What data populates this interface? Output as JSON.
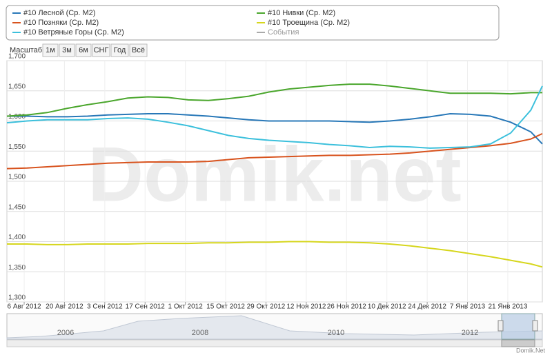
{
  "chart_data": {
    "type": "line",
    "range_selector": {
      "label": "Масштаб",
      "buttons": [
        "1м",
        "3м",
        "6м",
        "СНГ",
        "Год",
        "Всё"
      ]
    },
    "watermark": "Domik.net",
    "x": [
      "2012-07-31",
      "2012-08-07",
      "2012-08-14",
      "2012-08-21",
      "2012-08-28",
      "2012-09-04",
      "2012-09-11",
      "2012-09-18",
      "2012-09-25",
      "2012-10-02",
      "2012-10-09",
      "2012-10-16",
      "2012-10-23",
      "2012-10-30",
      "2012-11-06",
      "2012-11-13",
      "2012-11-20",
      "2012-11-27",
      "2012-12-04",
      "2012-12-11",
      "2012-12-18",
      "2012-12-25",
      "2013-01-01",
      "2013-01-08",
      "2013-01-15",
      "2013-01-22",
      "2013-01-29",
      "2013-02-02"
    ],
    "xlim": [
      "2012-07-31",
      "2013-02-02"
    ],
    "xticks": [
      {
        "value": "2012-08-06",
        "label": "6 Авг 2012"
      },
      {
        "value": "2012-08-20",
        "label": "20 Авг 2012"
      },
      {
        "value": "2012-09-03",
        "label": "3 Сен 2012"
      },
      {
        "value": "2012-09-17",
        "label": "17 Сен 2012"
      },
      {
        "value": "2012-10-01",
        "label": "1 Окт 2012"
      },
      {
        "value": "2012-10-15",
        "label": "15 Окт 2012"
      },
      {
        "value": "2012-10-29",
        "label": "29 Окт 2012"
      },
      {
        "value": "2012-11-12",
        "label": "12 Ноя 2012"
      },
      {
        "value": "2012-11-26",
        "label": "26 Ноя 2012"
      },
      {
        "value": "2012-12-10",
        "label": "10 Дек 2012"
      },
      {
        "value": "2012-12-24",
        "label": "24 Дек 2012"
      },
      {
        "value": "2013-01-07",
        "label": "7 Янв 2013"
      },
      {
        "value": "2013-01-21",
        "label": "21 Янв 2013"
      }
    ],
    "ylim": [
      1300,
      1700
    ],
    "yticks": [
      {
        "value": 1300,
        "label": "1,300"
      },
      {
        "value": 1350,
        "label": "1,350"
      },
      {
        "value": 1400,
        "label": "1,400"
      },
      {
        "value": 1450,
        "label": "1,450"
      },
      {
        "value": 1500,
        "label": "1,500"
      },
      {
        "value": 1550,
        "label": "1,550"
      },
      {
        "value": 1600,
        "label": "1,600"
      },
      {
        "value": 1650,
        "label": "1,650"
      },
      {
        "value": 1700,
        "label": "1,700"
      }
    ],
    "grid": true,
    "series": [
      {
        "name": "#10 Лесной (Ср. М2)",
        "color": "#2878b8",
        "values": [
          1608,
          1608,
          1607,
          1607,
          1608,
          1610,
          1611,
          1612,
          1612,
          1610,
          1608,
          1605,
          1602,
          1600,
          1600,
          1600,
          1600,
          1599,
          1598,
          1600,
          1603,
          1607,
          1612,
          1611,
          1608,
          1598,
          1582,
          1562
        ]
      },
      {
        "name": "#10 Нивки (Ср. М2)",
        "color": "#4aa62c",
        "values": [
          1608,
          1610,
          1614,
          1621,
          1627,
          1632,
          1638,
          1640,
          1639,
          1635,
          1634,
          1637,
          1641,
          1648,
          1653,
          1656,
          1659,
          1661,
          1661,
          1658,
          1654,
          1650,
          1646,
          1646,
          1646,
          1645,
          1647,
          1647
        ]
      },
      {
        "name": "#10 Позняки (Ср. М2)",
        "color": "#d8531e",
        "values": [
          1521,
          1522,
          1524,
          1526,
          1528,
          1530,
          1531,
          1532,
          1532,
          1532,
          1533,
          1536,
          1539,
          1540,
          1541,
          1542,
          1543,
          1543,
          1544,
          1545,
          1547,
          1550,
          1553,
          1556,
          1559,
          1563,
          1570,
          1579
        ]
      },
      {
        "name": "#10 Троещина (Ср. М2)",
        "color": "#d6d61c",
        "values": [
          1396,
          1396,
          1395,
          1395,
          1396,
          1396,
          1396,
          1397,
          1397,
          1397,
          1398,
          1398,
          1399,
          1399,
          1400,
          1400,
          1399,
          1399,
          1398,
          1396,
          1393,
          1389,
          1385,
          1380,
          1375,
          1369,
          1363,
          1358
        ]
      },
      {
        "name": "#10 Ветряные Горы (Ср. М2)",
        "color": "#3cc0dc",
        "values": [
          1597,
          1600,
          1602,
          1602,
          1602,
          1604,
          1605,
          1603,
          1598,
          1592,
          1584,
          1576,
          1571,
          1568,
          1566,
          1564,
          1561,
          1559,
          1556,
          1558,
          1557,
          1555,
          1556,
          1557,
          1562,
          1580,
          1618,
          1658
        ]
      }
    ],
    "events_legend": {
      "name": "События",
      "color": "#aaaaaa"
    },
    "navigator_years": [
      "2006",
      "2008",
      "2010",
      "2012"
    ],
    "credit": "Domik.Net"
  }
}
